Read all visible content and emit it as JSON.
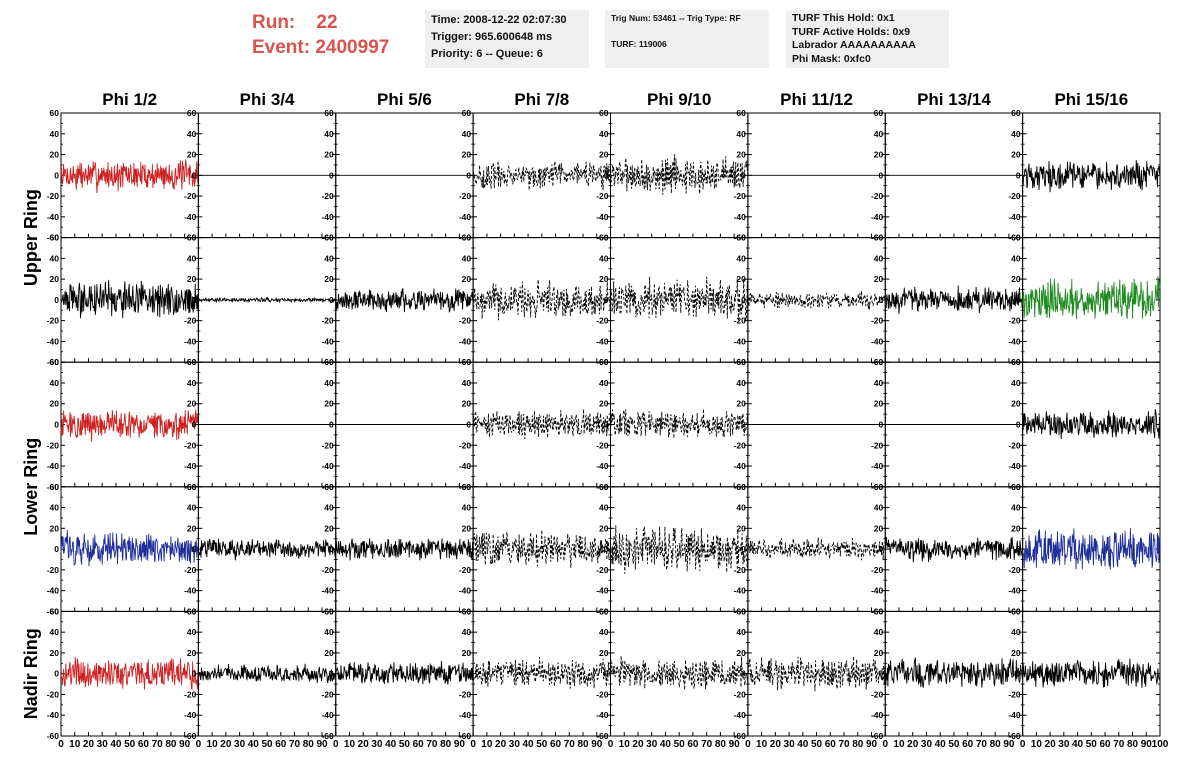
{
  "header": {
    "run_label": "Run:",
    "run_value": "22",
    "event_label": "Event:",
    "event_value": "2400997"
  },
  "info_boxes": [
    {
      "lines": [
        "Time: 2008-12-22 02:07:30",
        "Trigger: 965.600648 ms",
        "Priority: 6 -- Queue: 6"
      ]
    },
    {
      "lines": [
        "Trig Num: 53461 -- Trig Type: RF",
        "",
        "TURF: 119006"
      ]
    },
    {
      "lines": [
        "TURF This Hold: 0x1",
        "TURF Active Holds: 0x9",
        "Labrador AAAAAAAAAA",
        "Phi Mask: 0xfc0"
      ]
    }
  ],
  "chart_data": {
    "type": "line",
    "columns": [
      "Phi 1/2",
      "Phi 3/4",
      "Phi 5/6",
      "Phi 7/8",
      "Phi 9/10",
      "Phi 11/12",
      "Phi 13/14",
      "Phi 15/16"
    ],
    "ring_labels": [
      "Upper Ring",
      "Lower Ring",
      "Nadir Ring"
    ],
    "x_range": [
      0,
      100
    ],
    "x_ticks": [
      0,
      10,
      20,
      30,
      40,
      50,
      60,
      70,
      80,
      90,
      100
    ],
    "x_tick_labels": [
      "0",
      "10",
      "20",
      "30",
      "40",
      "50",
      "60",
      "70",
      "80",
      "90",
      "100"
    ],
    "y_range": [
      -60,
      60
    ],
    "y_ticks": [
      -60,
      -40,
      -20,
      0,
      20,
      40,
      60
    ],
    "y_tick_labels": [
      "-60",
      "-40",
      "-20",
      "0",
      "20",
      "40",
      "60"
    ],
    "trace_colors": {
      "black": "#000000",
      "red": "#cc2222",
      "blue": "#1f2f9a",
      "green": "#1f8a1f"
    },
    "panels": [
      [
        {
          "color": "red",
          "amplitude": 15,
          "style": "solid"
        },
        {
          "color": "black",
          "amplitude": 0,
          "style": "solid"
        },
        {
          "color": "black",
          "amplitude": 0,
          "style": "solid"
        },
        {
          "color": "black",
          "amplitude": 13,
          "style": "dashed"
        },
        {
          "color": "black",
          "amplitude": 18,
          "style": "dashed"
        },
        {
          "color": "black",
          "amplitude": 0,
          "style": "solid"
        },
        {
          "color": "black",
          "amplitude": 0,
          "style": "solid"
        },
        {
          "color": "black",
          "amplitude": 14,
          "style": "solid"
        }
      ],
      [
        {
          "color": "black",
          "amplitude": 17,
          "style": "solid"
        },
        {
          "color": "black",
          "amplitude": 2,
          "style": "solid"
        },
        {
          "color": "black",
          "amplitude": 11,
          "style": "solid"
        },
        {
          "color": "black",
          "amplitude": 18,
          "style": "dashed"
        },
        {
          "color": "black",
          "amplitude": 20,
          "style": "dashed"
        },
        {
          "color": "black",
          "amplitude": 8,
          "style": "dashed"
        },
        {
          "color": "black",
          "amplitude": 12,
          "style": "solid"
        },
        {
          "color": "green",
          "amplitude": 20,
          "style": "solid"
        }
      ],
      [
        {
          "color": "red",
          "amplitude": 15,
          "style": "solid"
        },
        {
          "color": "black",
          "amplitude": 0,
          "style": "solid"
        },
        {
          "color": "black",
          "amplitude": 0,
          "style": "solid"
        },
        {
          "color": "black",
          "amplitude": 13,
          "style": "dashed"
        },
        {
          "color": "black",
          "amplitude": 14,
          "style": "dashed"
        },
        {
          "color": "black",
          "amplitude": 0,
          "style": "solid"
        },
        {
          "color": "black",
          "amplitude": 0,
          "style": "solid"
        },
        {
          "color": "black",
          "amplitude": 13,
          "style": "solid"
        }
      ],
      [
        {
          "color": "blue",
          "amplitude": 16,
          "style": "solid"
        },
        {
          "color": "black",
          "amplitude": 10,
          "style": "solid"
        },
        {
          "color": "black",
          "amplitude": 11,
          "style": "solid"
        },
        {
          "color": "black",
          "amplitude": 17,
          "style": "dashed"
        },
        {
          "color": "black",
          "amplitude": 22,
          "style": "dashed"
        },
        {
          "color": "black",
          "amplitude": 10,
          "style": "dashed"
        },
        {
          "color": "black",
          "amplitude": 11,
          "style": "solid"
        },
        {
          "color": "blue",
          "amplitude": 20,
          "style": "solid"
        }
      ],
      [
        {
          "color": "red",
          "amplitude": 15,
          "style": "solid"
        },
        {
          "color": "black",
          "amplitude": 9,
          "style": "solid"
        },
        {
          "color": "black",
          "amplitude": 11,
          "style": "solid"
        },
        {
          "color": "black",
          "amplitude": 14,
          "style": "dashed"
        },
        {
          "color": "black",
          "amplitude": 15,
          "style": "dashed"
        },
        {
          "color": "black",
          "amplitude": 15,
          "style": "dashed"
        },
        {
          "color": "black",
          "amplitude": 14,
          "style": "solid"
        },
        {
          "color": "black",
          "amplitude": 14,
          "style": "solid"
        }
      ]
    ]
  }
}
